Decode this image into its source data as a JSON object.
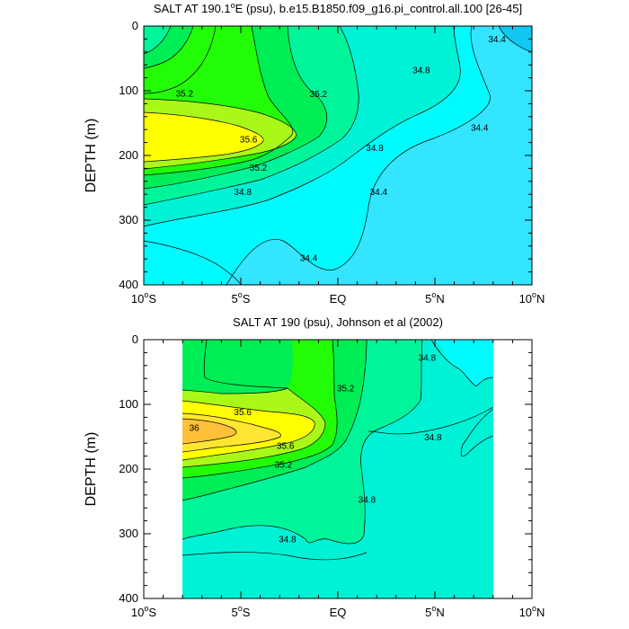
{
  "chart_data": [
    {
      "type": "contour",
      "title_main": "SALT AT 190.1",
      "title_degree": "o",
      "title_rest": "E (psu), b.e15.B1850.f09_g16.pi_control.all.100 [26-45]",
      "ylabel": "DEPTH (m)",
      "x_ticks": [
        {
          "value": -10,
          "num": "10",
          "hemi": "S"
        },
        {
          "value": -5,
          "num": "5",
          "hemi": "S"
        },
        {
          "value": 0,
          "num": "EQ",
          "hemi": ""
        },
        {
          "value": 5,
          "num": "5",
          "hemi": "N"
        },
        {
          "value": 10,
          "num": "10",
          "hemi": "N"
        }
      ],
      "y_ticks": [
        "0",
        "100",
        "200",
        "300",
        "400"
      ],
      "xlim": [
        -10,
        10
      ],
      "ylim": [
        0,
        400
      ],
      "degree_mark": "o",
      "contour_levels": [
        34.2,
        34.4,
        34.6,
        34.8,
        35.0,
        35.2,
        35.4,
        35.6
      ],
      "contour_labels": [
        {
          "text": "35.2",
          "lat": -7.9,
          "depth": 104
        },
        {
          "text": "35.2",
          "lat": -1.0,
          "depth": 105
        },
        {
          "text": "35.6",
          "lat": -4.6,
          "depth": 175
        },
        {
          "text": "35.2",
          "lat": -4.1,
          "depth": 219
        },
        {
          "text": "34.8",
          "lat": -4.9,
          "depth": 256
        },
        {
          "text": "34.8",
          "lat": 1.9,
          "depth": 188
        },
        {
          "text": "34.4",
          "lat": 2.1,
          "depth": 256
        },
        {
          "text": "34.8",
          "lat": 4.3,
          "depth": 68
        },
        {
          "text": "34.4",
          "lat": 8.2,
          "depth": 20
        },
        {
          "text": "34.4",
          "lat": 7.3,
          "depth": 157
        },
        {
          "text": "34.4",
          "lat": -1.5,
          "depth": 358
        }
      ]
    },
    {
      "type": "contour",
      "title_main": "SALT AT 190 (psu), Johnson et al (2002)",
      "ylabel": "DEPTH (m)",
      "x_ticks": [
        {
          "value": -10,
          "num": "10",
          "hemi": "S"
        },
        {
          "value": -5,
          "num": "5",
          "hemi": "S"
        },
        {
          "value": 0,
          "num": "EQ",
          "hemi": ""
        },
        {
          "value": 5,
          "num": "5",
          "hemi": "N"
        },
        {
          "value": 10,
          "num": "10",
          "hemi": "N"
        }
      ],
      "y_ticks": [
        "0",
        "100",
        "200",
        "300",
        "400"
      ],
      "xlim": [
        -10,
        10
      ],
      "ylim": [
        0,
        400
      ],
      "data_extent_lat": [
        -8,
        8
      ],
      "degree_mark": "o",
      "contour_levels": [
        34.6,
        34.8,
        35.0,
        35.2,
        35.4,
        35.6,
        35.8,
        36.0
      ],
      "contour_labels": [
        {
          "text": "35.2",
          "lat": 0.4,
          "depth": 75
        },
        {
          "text": "35.6",
          "lat": -4.9,
          "depth": 112
        },
        {
          "text": "36",
          "lat": -7.4,
          "depth": 136
        },
        {
          "text": "35.6",
          "lat": -2.7,
          "depth": 164
        },
        {
          "text": "35.2",
          "lat": -2.8,
          "depth": 193
        },
        {
          "text": "34.8",
          "lat": 4.6,
          "depth": 28
        },
        {
          "text": "34.8",
          "lat": 4.9,
          "depth": 151
        },
        {
          "text": "34.8",
          "lat": 1.5,
          "depth": 247
        },
        {
          "text": "34.8",
          "lat": -2.6,
          "depth": 308
        }
      ]
    }
  ]
}
